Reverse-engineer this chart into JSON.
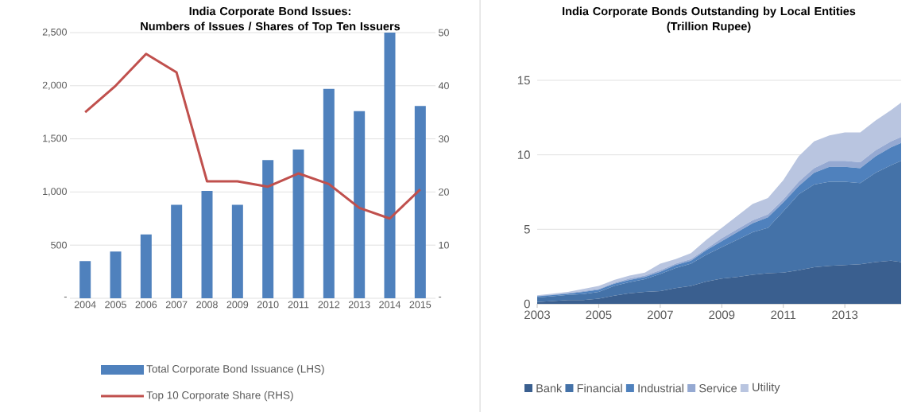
{
  "chart_data": [
    {
      "type": "bar",
      "title": "India Corporate Bond Issues:",
      "subtitle": "Numbers of Issues /  Shares of Top Ten Issuers",
      "categories": [
        "2004",
        "2005",
        "2006",
        "2007",
        "2008",
        "2009",
        "2010",
        "2011",
        "2012",
        "2013",
        "2014",
        "2015"
      ],
      "series": [
        {
          "name": "Total Corporate Bond Issuance (LHS)",
          "type": "bar",
          "color": "#4f81bd",
          "values": [
            350,
            440,
            600,
            880,
            1010,
            880,
            1300,
            1400,
            1970,
            1760,
            2500,
            1810
          ]
        },
        {
          "name": "Top 10 Corporate Share (RHS)",
          "type": "line",
          "axis": "y2",
          "color": "#c0504d",
          "values": [
            35,
            40,
            46,
            42.5,
            22,
            22,
            21,
            23.5,
            21.5,
            17,
            15,
            20.5
          ]
        }
      ],
      "ylim": [
        0,
        2500
      ],
      "yticks": [
        {
          "value": 0,
          "label": "-"
        },
        500,
        {
          "value": 1000,
          "label": "1,000"
        },
        {
          "value": 1500,
          "label": "1,500"
        },
        {
          "value": 2000,
          "label": "2,000"
        },
        {
          "value": 2500,
          "label": "2,500"
        }
      ],
      "y2lim": [
        0,
        50
      ],
      "y2ticks": [
        {
          "value": 0,
          "label": "-"
        },
        10,
        20,
        30,
        40,
        50
      ],
      "grid": "y",
      "legend": "bottom"
    },
    {
      "type": "area",
      "stacked": true,
      "title": "India Corporate Bonds Outstanding by Local Entities",
      "subtitle": "(Trillion Rupee)",
      "x": [
        2003,
        2003.5,
        2004,
        2004.5,
        2005,
        2005.5,
        2006,
        2006.5,
        2007,
        2007.5,
        2008,
        2008.5,
        2009,
        2009.5,
        2010,
        2010.5,
        2011,
        2011.5,
        2012,
        2012.5,
        2013,
        2013.5,
        2014,
        2014.5,
        2014.83
      ],
      "series": [
        {
          "name": "Bank",
          "color": "#3a5f8f",
          "values": [
            0.12,
            0.18,
            0.25,
            0.25,
            0.35,
            0.55,
            0.7,
            0.8,
            0.85,
            1.05,
            1.2,
            1.5,
            1.7,
            1.8,
            1.95,
            2.05,
            2.1,
            2.25,
            2.45,
            2.55,
            2.6,
            2.65,
            2.8,
            2.9,
            2.8
          ]
        },
        {
          "name": "Financial",
          "color": "#4472a8",
          "values": [
            0.31,
            0.32,
            0.35,
            0.4,
            0.45,
            0.65,
            0.75,
            0.85,
            1.15,
            1.35,
            1.5,
            1.8,
            2.1,
            2.5,
            2.85,
            3.05,
            4.1,
            5.1,
            5.55,
            5.65,
            5.6,
            5.45,
            6.0,
            6.4,
            6.8
          ]
        },
        {
          "name": "Industrial",
          "color": "#4f81bd",
          "values": [
            0.07,
            0.08,
            0.08,
            0.15,
            0.15,
            0.15,
            0.15,
            0.15,
            0.15,
            0.2,
            0.2,
            0.3,
            0.4,
            0.5,
            0.6,
            0.7,
            0.6,
            0.55,
            0.8,
            1.0,
            1.0,
            1.0,
            1.1,
            1.2,
            1.2
          ]
        },
        {
          "name": "Service",
          "color": "#95a9d2",
          "values": [
            0.03,
            0.03,
            0.04,
            0.05,
            0.05,
            0.05,
            0.1,
            0.1,
            0.1,
            0.1,
            0.1,
            0.1,
            0.2,
            0.2,
            0.2,
            0.2,
            0.2,
            0.3,
            0.3,
            0.4,
            0.4,
            0.4,
            0.4,
            0.4,
            0.4
          ]
        },
        {
          "name": "Utility",
          "color": "#b9c5e0",
          "values": [
            0.04,
            0.07,
            0.08,
            0.15,
            0.2,
            0.2,
            0.2,
            0.2,
            0.45,
            0.3,
            0.4,
            0.6,
            0.7,
            0.9,
            1.1,
            1.1,
            1.3,
            1.7,
            1.8,
            1.7,
            1.9,
            2.0,
            2.0,
            2.1,
            2.3
          ]
        }
      ],
      "xlim": [
        2003,
        2014.83
      ],
      "xticks": [
        2003,
        2005,
        2007,
        2009,
        2011,
        2013
      ],
      "ylim": [
        0,
        15
      ],
      "yticks": [
        0,
        5,
        10,
        15
      ],
      "grid": "y",
      "legend": "bottom"
    }
  ]
}
